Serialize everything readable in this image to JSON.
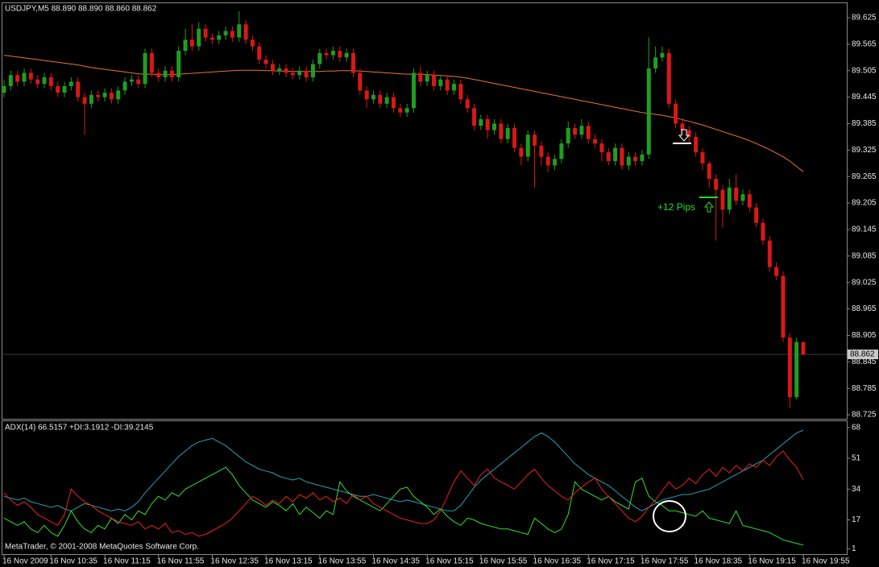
{
  "chart_data": [
    {
      "type": "candlestick",
      "title": "USDJPY,M5  88.890 88.890 88.860 88.862",
      "categories": [
        "16 Nov 2009",
        null,
        null,
        null,
        null,
        null,
        null,
        "16 Nov 10:35",
        null,
        null,
        null,
        null,
        null,
        null,
        null,
        "16 Nov 11:15",
        null,
        null,
        null,
        null,
        null,
        null,
        null,
        "16 Nov 11:55",
        null,
        null,
        null,
        null,
        null,
        null,
        null,
        "16 Nov 12:35",
        null,
        null,
        null,
        null,
        null,
        null,
        null,
        "16 Nov 13:15",
        null,
        null,
        null,
        null,
        null,
        null,
        null,
        "16 Nov 13:55",
        null,
        null,
        null,
        null,
        null,
        null,
        null,
        "16 Nov 14:35",
        null,
        null,
        null,
        null,
        null,
        null,
        null,
        "16 Nov 15:15",
        null,
        null,
        null,
        null,
        null,
        null,
        null,
        "16 Nov 15:55",
        null,
        null,
        null,
        null,
        null,
        null,
        null,
        "16 Nov 16:35",
        null,
        null,
        null,
        null,
        null,
        null,
        null,
        "16 Nov 17:15",
        null,
        null,
        null,
        null,
        null,
        null,
        null,
        "16 Nov 17:55",
        null,
        null,
        null,
        null,
        null,
        null,
        null,
        "16 Nov 18:35",
        null,
        null,
        null,
        null,
        null,
        null,
        null,
        "16 Nov 19:15",
        null,
        null,
        null,
        null,
        null,
        null,
        null,
        "16 Nov 19:55"
      ],
      "open": [
        89.455,
        89.47,
        89.495,
        89.48,
        89.5,
        89.485,
        89.475,
        89.49,
        89.47,
        89.455,
        89.47,
        89.48,
        89.445,
        89.43,
        89.45,
        89.445,
        89.455,
        89.44,
        89.46,
        89.48,
        89.485,
        89.475,
        89.545,
        89.5,
        89.49,
        89.505,
        89.49,
        89.55,
        89.575,
        89.56,
        89.6,
        89.58,
        89.575,
        89.585,
        89.595,
        89.58,
        89.61,
        89.575,
        89.56,
        89.53,
        89.52,
        89.505,
        89.51,
        89.5,
        89.495,
        89.505,
        89.49,
        89.52,
        89.545,
        89.54,
        89.55,
        89.535,
        89.545,
        89.5,
        89.46,
        89.44,
        89.45,
        89.43,
        89.445,
        89.42,
        89.41,
        89.42,
        89.5,
        89.48,
        89.495,
        89.47,
        89.485,
        89.46,
        89.475,
        89.44,
        89.42,
        89.38,
        89.395,
        89.37,
        89.385,
        89.35,
        89.375,
        89.33,
        89.31,
        89.36,
        89.335,
        89.31,
        89.29,
        89.305,
        89.34,
        89.375,
        89.36,
        89.38,
        89.35,
        89.34,
        89.32,
        89.3,
        89.33,
        89.29,
        89.31,
        89.3,
        89.315,
        89.51,
        89.535,
        89.545,
        89.43,
        89.385,
        89.37,
        89.355,
        89.32,
        89.295,
        89.26,
        89.235,
        89.19,
        89.24,
        89.21,
        89.225,
        89.195,
        89.16,
        89.12,
        89.06,
        89.04,
        88.9,
        88.765,
        88.89
      ],
      "high": [
        89.485,
        89.505,
        89.505,
        89.51,
        89.51,
        89.495,
        89.5,
        89.5,
        89.48,
        89.48,
        89.49,
        89.49,
        89.455,
        89.46,
        89.46,
        89.465,
        89.465,
        89.47,
        89.49,
        89.495,
        89.495,
        89.555,
        89.555,
        89.51,
        89.515,
        89.515,
        89.56,
        89.6,
        89.61,
        89.615,
        89.61,
        89.59,
        89.595,
        89.605,
        89.605,
        89.64,
        89.62,
        89.585,
        89.57,
        89.54,
        89.53,
        89.52,
        89.52,
        89.51,
        89.515,
        89.515,
        89.53,
        89.555,
        89.555,
        89.56,
        89.56,
        89.555,
        89.555,
        89.51,
        89.47,
        89.46,
        89.46,
        89.455,
        89.455,
        89.43,
        89.43,
        89.51,
        89.515,
        89.505,
        89.505,
        89.495,
        89.495,
        89.485,
        89.485,
        89.45,
        89.43,
        89.405,
        89.405,
        89.395,
        89.395,
        89.385,
        89.385,
        89.34,
        89.37,
        89.37,
        89.345,
        89.32,
        89.315,
        89.35,
        89.39,
        89.385,
        89.395,
        89.39,
        89.36,
        89.35,
        89.33,
        89.34,
        89.34,
        89.32,
        89.32,
        89.325,
        89.58,
        89.56,
        89.56,
        89.555,
        89.44,
        89.395,
        89.38,
        89.365,
        89.33,
        89.3,
        89.27,
        89.245,
        89.26,
        89.27,
        89.235,
        89.235,
        89.205,
        89.17,
        89.13,
        89.07,
        89.05,
        88.91,
        88.9,
        88.89
      ],
      "low": [
        89.445,
        89.46,
        89.47,
        89.47,
        89.475,
        89.465,
        89.465,
        89.46,
        89.445,
        89.445,
        89.46,
        89.435,
        89.36,
        89.42,
        89.435,
        89.435,
        89.43,
        89.43,
        89.45,
        89.47,
        89.465,
        89.465,
        89.49,
        89.48,
        89.48,
        89.48,
        89.48,
        89.54,
        89.55,
        89.55,
        89.57,
        89.565,
        89.565,
        89.575,
        89.57,
        89.57,
        89.565,
        89.55,
        89.52,
        89.51,
        89.495,
        89.495,
        89.49,
        89.485,
        89.485,
        89.48,
        89.48,
        89.51,
        89.53,
        89.53,
        89.525,
        89.525,
        89.49,
        89.45,
        89.42,
        89.43,
        89.42,
        89.42,
        89.41,
        89.4,
        89.4,
        89.41,
        89.47,
        89.47,
        89.46,
        89.46,
        89.45,
        89.45,
        89.43,
        89.41,
        89.37,
        89.37,
        89.35,
        89.36,
        89.34,
        89.34,
        89.32,
        89.29,
        89.3,
        89.24,
        89.29,
        89.275,
        89.28,
        89.295,
        89.33,
        89.35,
        89.35,
        89.34,
        89.33,
        89.3,
        89.29,
        89.29,
        89.28,
        89.28,
        89.29,
        89.29,
        89.305,
        89.5,
        89.525,
        89.42,
        89.375,
        89.36,
        89.34,
        89.31,
        89.28,
        89.24,
        89.12,
        89.15,
        89.18,
        89.2,
        89.2,
        89.185,
        89.15,
        89.11,
        89.05,
        89.03,
        88.89,
        88.74,
        88.76,
        88.86
      ],
      "close": [
        89.47,
        89.495,
        89.48,
        89.5,
        89.485,
        89.475,
        89.49,
        89.47,
        89.455,
        89.47,
        89.48,
        89.445,
        89.43,
        89.45,
        89.445,
        89.455,
        89.44,
        89.46,
        89.48,
        89.485,
        89.475,
        89.545,
        89.5,
        89.49,
        89.505,
        89.49,
        89.55,
        89.575,
        89.56,
        89.6,
        89.58,
        89.575,
        89.585,
        89.595,
        89.58,
        89.61,
        89.575,
        89.56,
        89.53,
        89.52,
        89.505,
        89.51,
        89.5,
        89.495,
        89.505,
        89.49,
        89.52,
        89.545,
        89.54,
        89.55,
        89.535,
        89.545,
        89.5,
        89.46,
        89.44,
        89.45,
        89.43,
        89.445,
        89.42,
        89.41,
        89.42,
        89.5,
        89.48,
        89.495,
        89.47,
        89.485,
        89.46,
        89.475,
        89.44,
        89.42,
        89.38,
        89.395,
        89.37,
        89.385,
        89.35,
        89.375,
        89.33,
        89.31,
        89.36,
        89.335,
        89.31,
        89.29,
        89.305,
        89.34,
        89.375,
        89.36,
        89.38,
        89.35,
        89.34,
        89.32,
        89.3,
        89.33,
        89.29,
        89.31,
        89.3,
        89.315,
        89.51,
        89.535,
        89.545,
        89.43,
        89.385,
        89.37,
        89.355,
        89.32,
        89.295,
        89.26,
        89.235,
        89.19,
        89.24,
        89.21,
        89.225,
        89.195,
        89.16,
        89.12,
        89.06,
        89.04,
        88.9,
        88.765,
        88.89,
        88.862
      ],
      "up_color": "#1f9e1f",
      "down_color": "#d81818",
      "ma": {
        "color": "#e8752a",
        "values": [
          89.54,
          89.538,
          89.536,
          89.534,
          89.532,
          89.53,
          89.528,
          89.526,
          89.524,
          89.522,
          89.52,
          89.518,
          89.515,
          89.512,
          89.51,
          89.508,
          89.506,
          89.504,
          89.502,
          89.5,
          89.498,
          89.497,
          89.497,
          89.496,
          89.496,
          89.496,
          89.497,
          89.498,
          89.499,
          89.5,
          89.501,
          89.502,
          89.503,
          89.504,
          89.505,
          89.506,
          89.506,
          89.506,
          89.506,
          89.505,
          89.505,
          89.504,
          89.504,
          89.503,
          89.503,
          89.503,
          89.503,
          89.503,
          89.504,
          89.504,
          89.505,
          89.505,
          89.505,
          89.504,
          89.503,
          89.502,
          89.501,
          89.5,
          89.499,
          89.498,
          89.497,
          89.497,
          89.497,
          89.496,
          89.495,
          89.494,
          89.493,
          89.492,
          89.49,
          89.488,
          89.485,
          89.482,
          89.479,
          89.476,
          89.473,
          89.47,
          89.467,
          89.464,
          89.461,
          89.458,
          89.455,
          89.452,
          89.449,
          89.446,
          89.443,
          89.44,
          89.437,
          89.434,
          89.431,
          89.428,
          89.425,
          89.422,
          89.419,
          89.416,
          89.413,
          89.41,
          89.408,
          89.406,
          89.404,
          89.401,
          89.398,
          89.394,
          89.39,
          89.386,
          89.382,
          89.377,
          89.372,
          89.367,
          89.362,
          89.357,
          89.352,
          89.346,
          89.34,
          89.333,
          89.326,
          89.318,
          89.31,
          89.3,
          89.288,
          89.276
        ]
      },
      "current_price": 88.862,
      "annotation": "+12 Pips",
      "ylim": [
        88.716,
        89.656
      ],
      "yticks": [
        89.625,
        89.565,
        89.505,
        89.445,
        89.385,
        89.325,
        89.265,
        89.205,
        89.145,
        89.085,
        89.025,
        88.965,
        88.905,
        88.845,
        88.785,
        88.725
      ]
    },
    {
      "type": "line",
      "title": "ADX(14) 66.5157 +DI:3.1912 -DI:39.2145",
      "footer": "MetaTrader, © 2001-2008 MetaQuotes Software Corp.",
      "series": [
        {
          "color": "#2a9fb4",
          "values": [
            30,
            29,
            28,
            29,
            27,
            26,
            25,
            24,
            25,
            23,
            22,
            24,
            26,
            25,
            24,
            23,
            22,
            23,
            22,
            24,
            27,
            32,
            36,
            40,
            44,
            48,
            52,
            55,
            58,
            60,
            61,
            62,
            60,
            58,
            55,
            52,
            49,
            47,
            45,
            44,
            43,
            41,
            40,
            39,
            40,
            38,
            37,
            36,
            35,
            34,
            33,
            32,
            31,
            30,
            30,
            31,
            30,
            29,
            28,
            27,
            28,
            27,
            26,
            25,
            24,
            23,
            22,
            22,
            25,
            30,
            35,
            39,
            42,
            45,
            48,
            51,
            54,
            57,
            60,
            63,
            65,
            63,
            60,
            56,
            52,
            48,
            45,
            42,
            40,
            38,
            36,
            33,
            30,
            27,
            24,
            22,
            24,
            26,
            28,
            29,
            30,
            31,
            31,
            32,
            33,
            34,
            36,
            38,
            40,
            42,
            44,
            46,
            48,
            50,
            53,
            56,
            59,
            62,
            65,
            66.5157
          ]
        },
        {
          "color": "#33e033",
          "values": [
            18,
            16,
            14,
            16,
            12,
            10,
            14,
            10,
            8,
            14,
            22,
            16,
            12,
            10,
            14,
            12,
            18,
            15,
            20,
            17,
            22,
            20,
            26,
            30,
            28,
            32,
            30,
            34,
            36,
            38,
            40,
            42,
            44,
            46,
            42,
            36,
            32,
            28,
            26,
            24,
            27,
            25,
            22,
            26,
            20,
            24,
            21,
            18,
            22,
            20,
            38,
            33,
            30,
            28,
            26,
            24,
            22,
            26,
            30,
            34,
            35,
            30,
            27,
            24,
            20,
            23,
            19,
            16,
            14,
            18,
            17,
            15,
            14,
            13,
            12,
            12,
            11,
            10,
            9,
            18,
            15,
            12,
            10,
            12,
            20,
            38,
            34,
            32,
            30,
            28,
            30,
            27,
            25,
            23,
            38,
            40,
            30,
            27,
            25,
            22,
            22,
            21,
            20,
            19,
            22,
            18,
            17,
            16,
            15,
            22,
            14,
            13,
            12,
            11,
            10,
            8,
            6,
            5,
            4,
            3.1912
          ]
        },
        {
          "color": "#f02020",
          "values": [
            32,
            28,
            25,
            27,
            24,
            20,
            18,
            16,
            14,
            20,
            34,
            30,
            27,
            25,
            22,
            20,
            18,
            16,
            15,
            14,
            16,
            12,
            14,
            12,
            15,
            10,
            11,
            9,
            10,
            8,
            9,
            11,
            13,
            15,
            18,
            22,
            26,
            30,
            28,
            25,
            28,
            26,
            30,
            27,
            31,
            29,
            32,
            28,
            30,
            27,
            29,
            26,
            31,
            28,
            30,
            26,
            24,
            22,
            20,
            18,
            17,
            16,
            15,
            15,
            17,
            22,
            30,
            38,
            44,
            40,
            36,
            42,
            45,
            40,
            38,
            36,
            34,
            38,
            42,
            45,
            40,
            36,
            33,
            30,
            28,
            32,
            35,
            38,
            40,
            34,
            30,
            26,
            22,
            18,
            16,
            19,
            24,
            28,
            33,
            38,
            34,
            36,
            40,
            37,
            42,
            45,
            41,
            46,
            43,
            47,
            44,
            48,
            46,
            50,
            47,
            52,
            55,
            50,
            46,
            39.2145
          ]
        }
      ],
      "ylim": [
        -1,
        71
      ],
      "yticks": [
        68,
        51,
        34,
        17,
        1
      ]
    }
  ]
}
